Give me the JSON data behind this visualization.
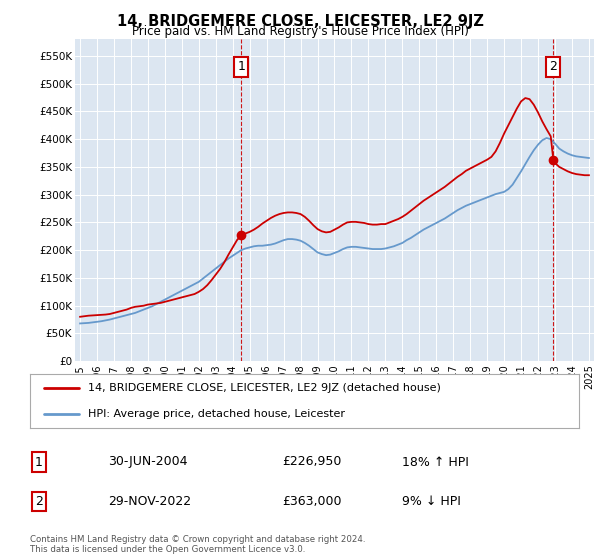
{
  "title": "14, BRIDGEMERE CLOSE, LEICESTER, LE2 9JZ",
  "subtitle": "Price paid vs. HM Land Registry's House Price Index (HPI)",
  "ylabel_ticks": [
    "£0",
    "£50K",
    "£100K",
    "£150K",
    "£200K",
    "£250K",
    "£300K",
    "£350K",
    "£400K",
    "£450K",
    "£500K",
    "£550K"
  ],
  "ytick_values": [
    0,
    50000,
    100000,
    150000,
    200000,
    250000,
    300000,
    350000,
    400000,
    450000,
    500000,
    550000
  ],
  "ylim": [
    0,
    580000
  ],
  "background_color": "#dce6f1",
  "plot_bg": "#dce6f1",
  "red_line_color": "#cc0000",
  "blue_line_color": "#6699cc",
  "marker1_x": 2004.5,
  "marker1_y": 226950,
  "marker2_x": 2022.9,
  "marker2_y": 363000,
  "vline1_x": 2004.5,
  "vline2_x": 2022.9,
  "annotation1": {
    "label": "1",
    "date": "30-JUN-2004",
    "price": "£226,950",
    "hpi": "18% ↑ HPI"
  },
  "annotation2": {
    "label": "2",
    "date": "29-NOV-2022",
    "price": "£363,000",
    "hpi": "9% ↓ HPI"
  },
  "legend_line1": "14, BRIDGEMERE CLOSE, LEICESTER, LE2 9JZ (detached house)",
  "legend_line2": "HPI: Average price, detached house, Leicester",
  "footer": "Contains HM Land Registry data © Crown copyright and database right 2024.\nThis data is licensed under the Open Government Licence v3.0.",
  "xlim": [
    1994.7,
    2025.3
  ],
  "xticks": [
    1995,
    1996,
    1997,
    1998,
    1999,
    2000,
    2001,
    2002,
    2003,
    2004,
    2005,
    2006,
    2007,
    2008,
    2009,
    2010,
    2011,
    2012,
    2013,
    2014,
    2015,
    2016,
    2017,
    2018,
    2019,
    2020,
    2021,
    2022,
    2023,
    2024,
    2025
  ],
  "hpi_years": [
    1995.0,
    1995.25,
    1995.5,
    1995.75,
    1996.0,
    1996.25,
    1996.5,
    1996.75,
    1997.0,
    1997.25,
    1997.5,
    1997.75,
    1998.0,
    1998.25,
    1998.5,
    1998.75,
    1999.0,
    1999.25,
    1999.5,
    1999.75,
    2000.0,
    2000.25,
    2000.5,
    2000.75,
    2001.0,
    2001.25,
    2001.5,
    2001.75,
    2002.0,
    2002.25,
    2002.5,
    2002.75,
    2003.0,
    2003.25,
    2003.5,
    2003.75,
    2004.0,
    2004.25,
    2004.5,
    2004.75,
    2005.0,
    2005.25,
    2005.5,
    2005.75,
    2006.0,
    2006.25,
    2006.5,
    2006.75,
    2007.0,
    2007.25,
    2007.5,
    2007.75,
    2008.0,
    2008.25,
    2008.5,
    2008.75,
    2009.0,
    2009.25,
    2009.5,
    2009.75,
    2010.0,
    2010.25,
    2010.5,
    2010.75,
    2011.0,
    2011.25,
    2011.5,
    2011.75,
    2012.0,
    2012.25,
    2012.5,
    2012.75,
    2013.0,
    2013.25,
    2013.5,
    2013.75,
    2014.0,
    2014.25,
    2014.5,
    2014.75,
    2015.0,
    2015.25,
    2015.5,
    2015.75,
    2016.0,
    2016.25,
    2016.5,
    2016.75,
    2017.0,
    2017.25,
    2017.5,
    2017.75,
    2018.0,
    2018.25,
    2018.5,
    2018.75,
    2019.0,
    2019.25,
    2019.5,
    2019.75,
    2020.0,
    2020.25,
    2020.5,
    2020.75,
    2021.0,
    2021.25,
    2021.5,
    2021.75,
    2022.0,
    2022.25,
    2022.5,
    2022.75,
    2023.0,
    2023.25,
    2023.5,
    2023.75,
    2024.0,
    2024.25,
    2024.5,
    2024.75,
    2025.0
  ],
  "hpi_values": [
    68000,
    68500,
    69000,
    70000,
    71000,
    72000,
    73500,
    75000,
    77000,
    79000,
    81000,
    83000,
    85000,
    87000,
    90000,
    93000,
    96000,
    99000,
    103000,
    107000,
    111000,
    115000,
    119000,
    123000,
    127000,
    131000,
    135000,
    139000,
    143000,
    149000,
    155000,
    161000,
    167000,
    173000,
    179000,
    185000,
    190000,
    195000,
    200000,
    203000,
    205000,
    207000,
    208000,
    208000,
    209000,
    210000,
    212000,
    215000,
    218000,
    220000,
    220000,
    219000,
    217000,
    213000,
    208000,
    202000,
    196000,
    193000,
    191000,
    192000,
    195000,
    198000,
    202000,
    205000,
    206000,
    206000,
    205000,
    204000,
    203000,
    202000,
    202000,
    202000,
    203000,
    205000,
    207000,
    210000,
    213000,
    218000,
    222000,
    227000,
    232000,
    237000,
    241000,
    245000,
    249000,
    253000,
    257000,
    262000,
    267000,
    272000,
    276000,
    280000,
    283000,
    286000,
    289000,
    292000,
    295000,
    298000,
    301000,
    303000,
    305000,
    310000,
    318000,
    330000,
    342000,
    355000,
    368000,
    380000,
    390000,
    398000,
    402000,
    400000,
    392000,
    383000,
    378000,
    374000,
    371000,
    369000,
    368000,
    367000,
    366000
  ],
  "red_years": [
    1995.0,
    1995.25,
    1995.5,
    1995.75,
    1996.0,
    1996.25,
    1996.5,
    1996.75,
    1997.0,
    1997.25,
    1997.5,
    1997.75,
    1998.0,
    1998.25,
    1998.5,
    1998.75,
    1999.0,
    1999.25,
    1999.5,
    1999.75,
    2000.0,
    2000.25,
    2000.5,
    2000.75,
    2001.0,
    2001.25,
    2001.5,
    2001.75,
    2002.0,
    2002.25,
    2002.5,
    2002.75,
    2003.0,
    2003.25,
    2003.5,
    2003.75,
    2004.0,
    2004.25,
    2004.5,
    2004.5,
    2004.75,
    2005.0,
    2005.25,
    2005.5,
    2005.75,
    2006.0,
    2006.25,
    2006.5,
    2006.75,
    2007.0,
    2007.25,
    2007.5,
    2007.75,
    2008.0,
    2008.25,
    2008.5,
    2008.75,
    2009.0,
    2009.25,
    2009.5,
    2009.75,
    2010.0,
    2010.25,
    2010.5,
    2010.75,
    2011.0,
    2011.25,
    2011.5,
    2011.75,
    2012.0,
    2012.25,
    2012.5,
    2012.75,
    2013.0,
    2013.25,
    2013.5,
    2013.75,
    2014.0,
    2014.25,
    2014.5,
    2014.75,
    2015.0,
    2015.25,
    2015.5,
    2015.75,
    2016.0,
    2016.25,
    2016.5,
    2016.75,
    2017.0,
    2017.25,
    2017.5,
    2017.75,
    2018.0,
    2018.25,
    2018.5,
    2018.75,
    2019.0,
    2019.25,
    2019.5,
    2019.75,
    2020.0,
    2020.25,
    2020.5,
    2020.75,
    2021.0,
    2021.25,
    2021.5,
    2021.75,
    2022.0,
    2022.25,
    2022.5,
    2022.75,
    2022.9,
    2023.0,
    2023.25,
    2023.5,
    2023.75,
    2024.0,
    2024.25,
    2024.5,
    2024.75,
    2025.0
  ],
  "red_values": [
    80000,
    81000,
    82000,
    82500,
    83000,
    83500,
    84000,
    85000,
    87000,
    89000,
    91000,
    93000,
    96000,
    98000,
    99000,
    100000,
    102000,
    103000,
    104000,
    105000,
    107000,
    109000,
    111000,
    113000,
    115000,
    117000,
    119000,
    121000,
    125000,
    130000,
    137000,
    146000,
    156000,
    166000,
    178000,
    192000,
    205000,
    218000,
    226950,
    226950,
    230000,
    233000,
    237000,
    242000,
    248000,
    253000,
    258000,
    262000,
    265000,
    267000,
    268000,
    268000,
    267000,
    265000,
    260000,
    253000,
    245000,
    238000,
    234000,
    232000,
    233000,
    237000,
    241000,
    246000,
    250000,
    251000,
    251000,
    250000,
    249000,
    247000,
    246000,
    246000,
    247000,
    247000,
    250000,
    253000,
    256000,
    260000,
    265000,
    271000,
    277000,
    283000,
    289000,
    294000,
    299000,
    304000,
    309000,
    314000,
    320000,
    326000,
    332000,
    337000,
    343000,
    347000,
    351000,
    355000,
    359000,
    363000,
    368000,
    378000,
    393000,
    410000,
    425000,
    440000,
    455000,
    468000,
    474000,
    472000,
    462000,
    448000,
    432000,
    418000,
    405000,
    363000,
    357000,
    350000,
    346000,
    342000,
    339000,
    337000,
    336000,
    335000,
    335000
  ]
}
